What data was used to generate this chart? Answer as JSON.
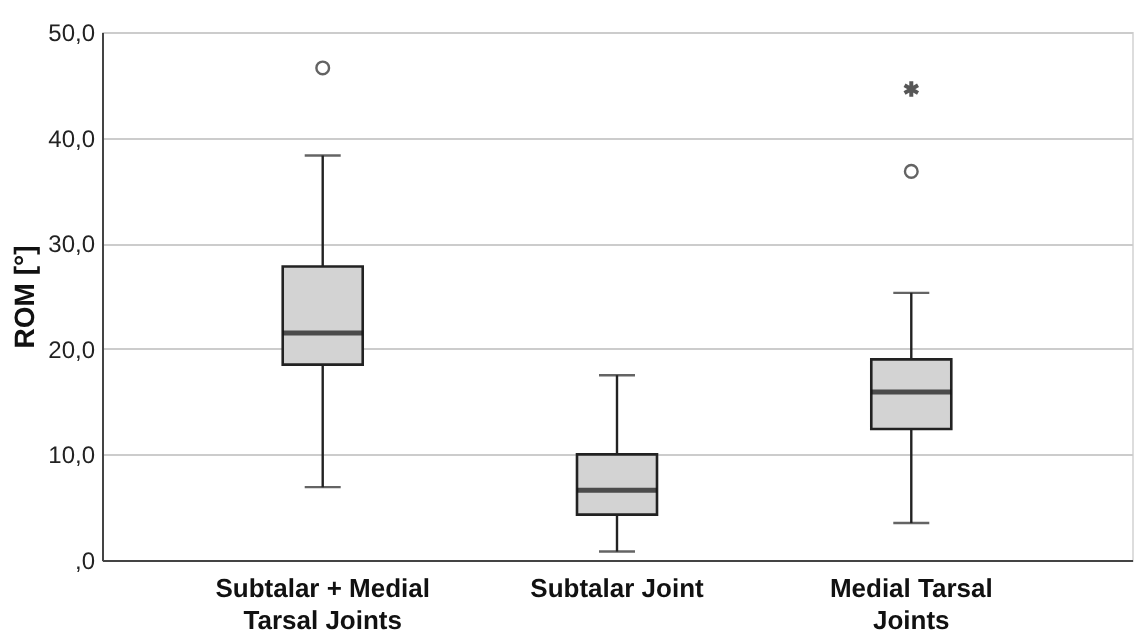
{
  "chart_data": {
    "type": "box",
    "ylabel": "ROM [°]",
    "categories": [
      "Subtalar + Medial Tarsal Joints",
      "Subtalar Joint",
      "Medial Tarsal Joints"
    ],
    "boxes": [
      {
        "low": 6.9,
        "q1": 18.5,
        "median": 21.5,
        "q3": 27.8,
        "high": 38.3,
        "outliers": [
          46.6
        ]
      },
      {
        "low": 0.8,
        "q1": 4.3,
        "median": 6.6,
        "q3": 10.0,
        "high": 17.5
      },
      {
        "low": 3.5,
        "q1": 12.4,
        "median": 15.9,
        "q3": 19.0,
        "high": 25.3,
        "outliers": [
          36.8,
          44.6
        ]
      }
    ],
    "color": "#d3d3d3",
    "ylim": [
      0,
      50
    ],
    "yticks": [
      {
        "value": 0,
        "label": ",0"
      },
      {
        "value": 10,
        "label": "10,0"
      },
      {
        "value": 20,
        "label": "20,0"
      },
      {
        "value": 30,
        "label": "30,0"
      },
      {
        "value": 40,
        "label": "40,0"
      },
      {
        "value": 50,
        "label": "50,0"
      }
    ],
    "grid": "y"
  }
}
